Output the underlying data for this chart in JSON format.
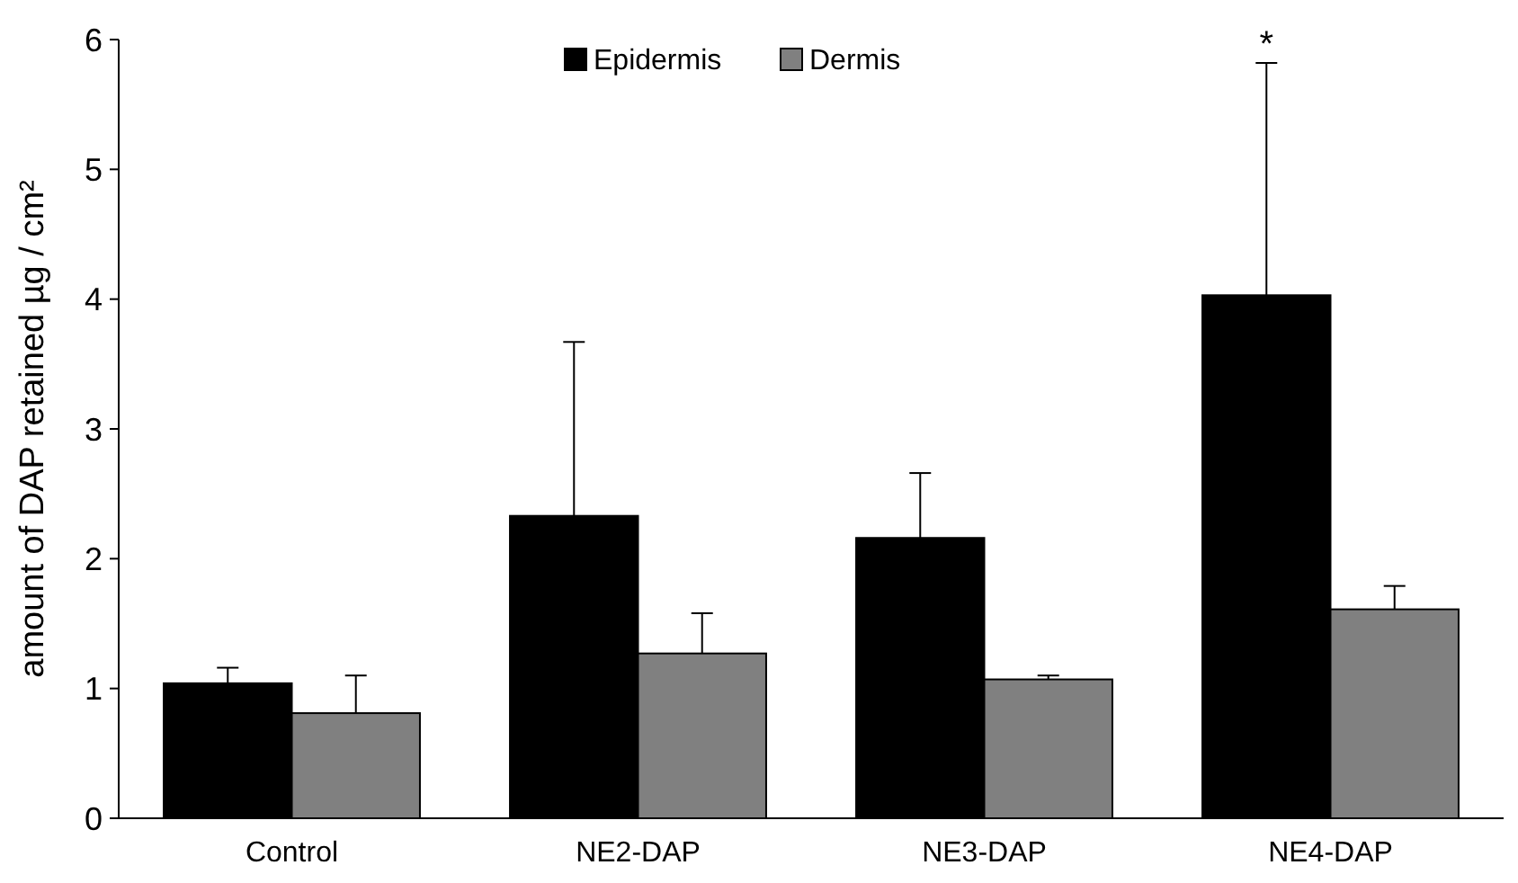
{
  "chart_data": {
    "type": "bar",
    "ylabel": "amount of DAP retained µg / cm²",
    "categories": [
      "Control",
      "NE2-DAP",
      "NE3-DAP",
      "NE4-DAP"
    ],
    "series": [
      {
        "name": "Epidermis",
        "color": "#000000",
        "values": [
          1.04,
          2.33,
          2.16,
          4.03
        ],
        "errors": [
          [
            1.04,
            1.16
          ],
          [
            2.33,
            3.67
          ],
          [
            2.16,
            2.66
          ],
          [
            4.03,
            5.82
          ]
        ]
      },
      {
        "name": "Dermis",
        "color": "#808080",
        "values": [
          0.81,
          1.27,
          1.07,
          1.61
        ],
        "errors": [
          [
            0.81,
            1.1
          ],
          [
            1.27,
            1.58
          ],
          [
            1.07,
            1.1
          ],
          [
            1.61,
            1.79
          ]
        ]
      }
    ],
    "ylim": [
      0,
      6
    ],
    "yticks": [
      0,
      1,
      2,
      3,
      4,
      5,
      6
    ],
    "grid": false,
    "legend": "top",
    "annotations": [
      "*"
    ]
  }
}
